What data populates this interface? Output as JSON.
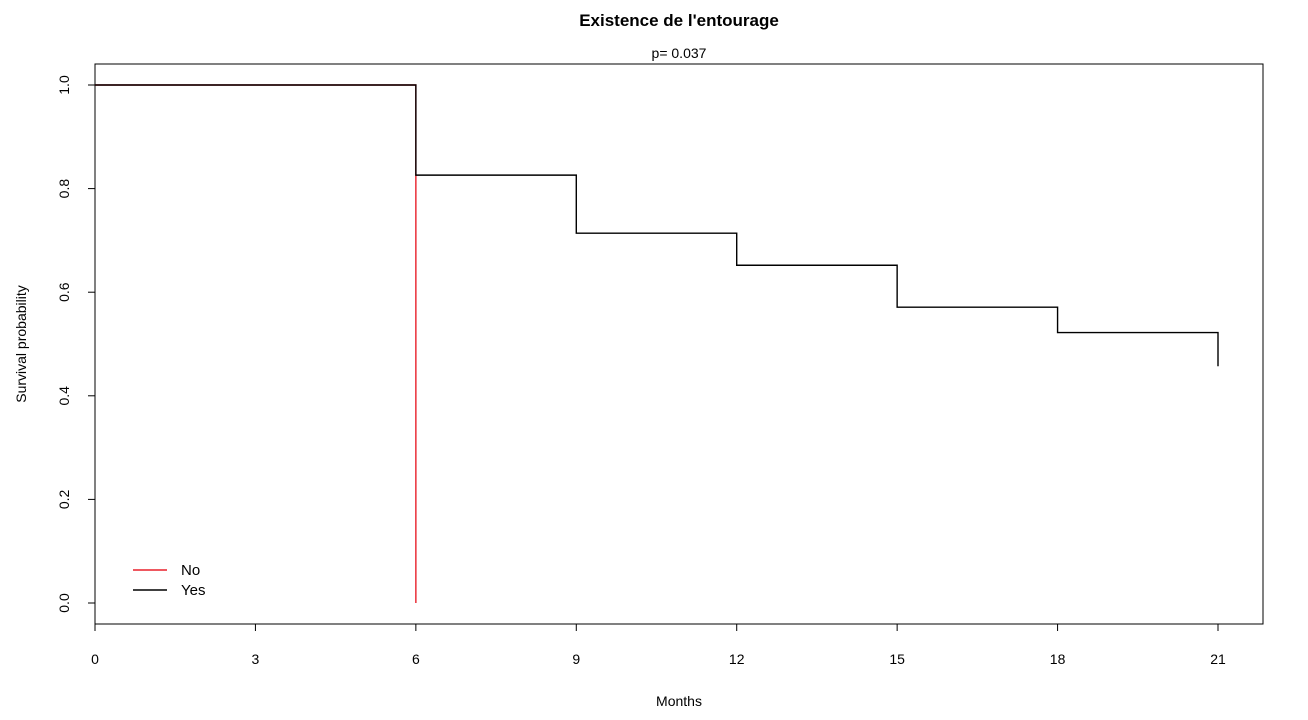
{
  "chart_data": {
    "type": "line",
    "subtype": "kaplan-meier step",
    "title": "Existence de l'entourage",
    "subtitle": "p= 0.037",
    "xlabel": "Months",
    "ylabel": "Survival probability",
    "xlim": [
      0,
      21
    ],
    "ylim": [
      0,
      1
    ],
    "x_ticks": [
      0,
      3,
      6,
      9,
      12,
      15,
      18,
      21
    ],
    "y_ticks": [
      0.0,
      0.2,
      0.4,
      0.6,
      0.8,
      1.0
    ],
    "x_tick_labels": [
      "0",
      "3",
      "6",
      "9",
      "12",
      "15",
      "18",
      "21"
    ],
    "y_tick_labels": [
      "0.0",
      "0.2",
      "0.4",
      "0.6",
      "0.8",
      "1.0"
    ],
    "grid": false,
    "legend_position": "bottom-left",
    "series": [
      {
        "name": "No",
        "color": "#e8212b",
        "x": [
          0,
          6,
          6
        ],
        "y": [
          1.0,
          1.0,
          0.0
        ]
      },
      {
        "name": "Yes",
        "color": "#000000",
        "x": [
          0,
          6,
          6,
          9,
          9,
          12,
          12,
          15,
          15,
          18,
          18,
          21,
          21
        ],
        "y": [
          1.0,
          1.0,
          0.826,
          0.826,
          0.714,
          0.714,
          0.652,
          0.652,
          0.571,
          0.571,
          0.522,
          0.522,
          0.457
        ]
      }
    ]
  }
}
